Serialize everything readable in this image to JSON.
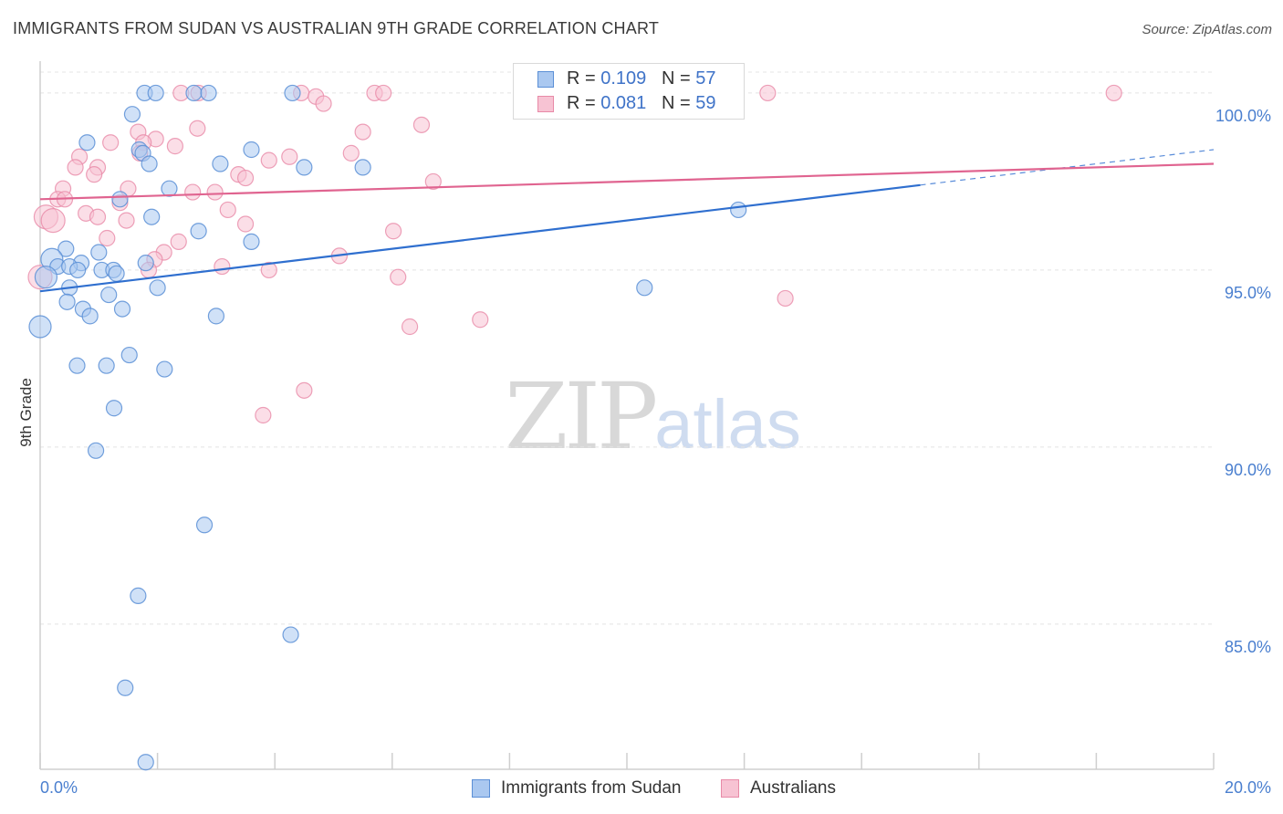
{
  "header": {
    "title": "IMMIGRANTS FROM SUDAN VS AUSTRALIAN 9TH GRADE CORRELATION CHART",
    "source": "Source: ZipAtlas.com"
  },
  "watermark": {
    "zip": "ZIP",
    "atlas": "atlas"
  },
  "legend": {
    "rows": [
      {
        "r_label": "R = ",
        "r_value": "0.109",
        "n_label": "N = ",
        "n_value": "57"
      },
      {
        "r_label": "R = ",
        "r_value": "0.081",
        "n_label": "N = ",
        "n_value": "59"
      }
    ]
  },
  "chart_data": {
    "type": "scatter",
    "title": "IMMIGRANTS FROM SUDAN VS AUSTRALIAN 9TH GRADE CORRELATION CHART",
    "xlabel": "",
    "ylabel": "9th Grade",
    "xlim": [
      0.0,
      20.0
    ],
    "ylim": [
      80.9,
      100.9
    ],
    "x_tick_labels": [
      "0.0%",
      "20.0%"
    ],
    "y_ticks": [
      85.0,
      90.0,
      95.0,
      100.0
    ],
    "y_tick_labels": [
      "85.0%",
      "90.0%",
      "95.0%",
      "100.0%"
    ],
    "grid": true,
    "legend_position": "top-center",
    "colors": {
      "sudan_fill": "#aac8f0",
      "sudan_stroke": "#5b8fd6",
      "sudan_line": "#2f6fcf",
      "aus_fill": "#f7c3d3",
      "aus_stroke": "#e88aa7",
      "aus_line": "#e06490"
    },
    "series": [
      {
        "name": "Immigrants from Sudan",
        "r": 0.109,
        "n": 57,
        "trend": {
          "x0": 0.0,
          "y0": 94.4,
          "x1": 15.0,
          "y1": 97.4,
          "dash_to_x": 20.0,
          "dash_to_y": 98.4
        },
        "points": [
          [
            1.78,
            100.0
          ],
          [
            1.97,
            100.0
          ],
          [
            2.62,
            100.0
          ],
          [
            2.87,
            100.0
          ],
          [
            4.3,
            100.0
          ],
          [
            1.57,
            99.4
          ],
          [
            0.8,
            98.6
          ],
          [
            1.69,
            98.4
          ],
          [
            1.75,
            98.3
          ],
          [
            3.6,
            98.4
          ],
          [
            1.86,
            98.0
          ],
          [
            3.07,
            98.0
          ],
          [
            4.5,
            97.9
          ],
          [
            5.5,
            97.9
          ],
          [
            2.2,
            97.3
          ],
          [
            1.36,
            97.0
          ],
          [
            1.9,
            96.5
          ],
          [
            2.7,
            96.1
          ],
          [
            3.6,
            95.8
          ],
          [
            0.44,
            95.6
          ],
          [
            0.2,
            95.3
          ],
          [
            0.7,
            95.2
          ],
          [
            1.0,
            95.5
          ],
          [
            1.8,
            95.2
          ],
          [
            0.3,
            95.1
          ],
          [
            0.5,
            95.1
          ],
          [
            0.64,
            95.0
          ],
          [
            1.05,
            95.0
          ],
          [
            1.25,
            95.0
          ],
          [
            1.3,
            94.9
          ],
          [
            0.1,
            94.8
          ],
          [
            0.5,
            94.5
          ],
          [
            2.0,
            94.5
          ],
          [
            1.17,
            94.3
          ],
          [
            0.46,
            94.1
          ],
          [
            0.73,
            93.9
          ],
          [
            0.85,
            93.7
          ],
          [
            1.4,
            93.9
          ],
          [
            3.0,
            93.7
          ],
          [
            0.0,
            93.4
          ],
          [
            0.63,
            92.3
          ],
          [
            1.13,
            92.3
          ],
          [
            1.52,
            92.6
          ],
          [
            2.12,
            92.2
          ],
          [
            1.26,
            91.1
          ],
          [
            0.95,
            89.9
          ],
          [
            2.8,
            87.8
          ],
          [
            1.67,
            85.8
          ],
          [
            4.27,
            84.7
          ],
          [
            1.45,
            83.2
          ],
          [
            1.8,
            81.1
          ],
          [
            10.3,
            94.5
          ],
          [
            11.9,
            96.7
          ]
        ]
      },
      {
        "name": "Australians",
        "r": 0.081,
        "n": 59,
        "trend": {
          "x0": 0.0,
          "y0": 97.0,
          "x1": 20.0,
          "y1": 98.0
        },
        "points": [
          [
            2.4,
            100.0
          ],
          [
            2.7,
            100.0
          ],
          [
            4.45,
            100.0
          ],
          [
            5.7,
            100.0
          ],
          [
            5.85,
            100.0
          ],
          [
            12.4,
            100.0
          ],
          [
            18.3,
            100.0
          ],
          [
            4.7,
            99.9
          ],
          [
            4.83,
            99.7
          ],
          [
            6.5,
            99.1
          ],
          [
            2.68,
            99.0
          ],
          [
            5.5,
            98.9
          ],
          [
            1.67,
            98.9
          ],
          [
            1.97,
            98.7
          ],
          [
            1.2,
            98.6
          ],
          [
            1.76,
            98.6
          ],
          [
            2.3,
            98.5
          ],
          [
            1.7,
            98.3
          ],
          [
            0.67,
            98.2
          ],
          [
            5.3,
            98.3
          ],
          [
            4.25,
            98.2
          ],
          [
            3.9,
            98.1
          ],
          [
            0.6,
            97.9
          ],
          [
            0.98,
            97.9
          ],
          [
            0.92,
            97.7
          ],
          [
            3.38,
            97.7
          ],
          [
            3.5,
            97.6
          ],
          [
            6.7,
            97.5
          ],
          [
            0.39,
            97.3
          ],
          [
            1.5,
            97.3
          ],
          [
            2.6,
            97.2
          ],
          [
            2.98,
            97.2
          ],
          [
            0.3,
            97.0
          ],
          [
            0.42,
            97.0
          ],
          [
            1.36,
            96.9
          ],
          [
            3.2,
            96.7
          ],
          [
            0.78,
            96.6
          ],
          [
            0.98,
            96.5
          ],
          [
            0.1,
            96.5
          ],
          [
            0.22,
            96.4
          ],
          [
            1.47,
            96.4
          ],
          [
            3.5,
            96.3
          ],
          [
            6.02,
            96.1
          ],
          [
            1.14,
            95.9
          ],
          [
            2.36,
            95.8
          ],
          [
            2.11,
            95.5
          ],
          [
            5.1,
            95.4
          ],
          [
            1.95,
            95.3
          ],
          [
            1.85,
            95.0
          ],
          [
            3.1,
            95.1
          ],
          [
            3.9,
            95.0
          ],
          [
            6.1,
            94.8
          ],
          [
            0.0,
            94.8
          ],
          [
            12.7,
            94.2
          ],
          [
            7.5,
            93.6
          ],
          [
            6.3,
            93.4
          ],
          [
            4.5,
            91.6
          ],
          [
            3.8,
            90.9
          ]
        ]
      }
    ]
  },
  "bottom_legend": {
    "items": [
      {
        "label": "Immigrants from Sudan"
      },
      {
        "label": "Australians"
      }
    ]
  }
}
